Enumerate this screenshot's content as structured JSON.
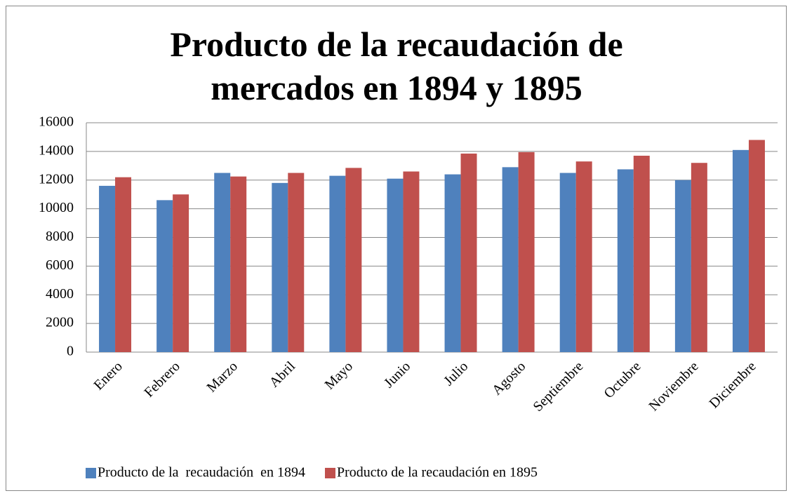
{
  "chart_data": {
    "type": "bar",
    "title": "Producto de la recaudación de mercados en 1894 y 1895",
    "categories": [
      "Enero",
      "Febrero",
      "Marzo",
      "Abril",
      "Mayo",
      "Junio",
      "Julio",
      "Agosto",
      "Septiembre",
      "Octubre",
      "Noviembre",
      "Diciembre"
    ],
    "series": [
      {
        "name": "Producto de la  recaudación  en 1894",
        "color": "#4f81bd",
        "values": [
          11600,
          10600,
          12500,
          11800,
          12300,
          12100,
          12400,
          12900,
          12500,
          12750,
          12000,
          14100
        ]
      },
      {
        "name": "Producto de la recaudación en 1895",
        "color": "#c0504d",
        "values": [
          12200,
          11000,
          12250,
          12500,
          12850,
          12600,
          13850,
          13950,
          13300,
          13700,
          13200,
          14800
        ]
      }
    ],
    "ylim": [
      0,
      16000
    ],
    "yticks": [
      0,
      2000,
      4000,
      6000,
      8000,
      10000,
      12000,
      14000,
      16000
    ],
    "grid": true,
    "legend": "bottom"
  }
}
